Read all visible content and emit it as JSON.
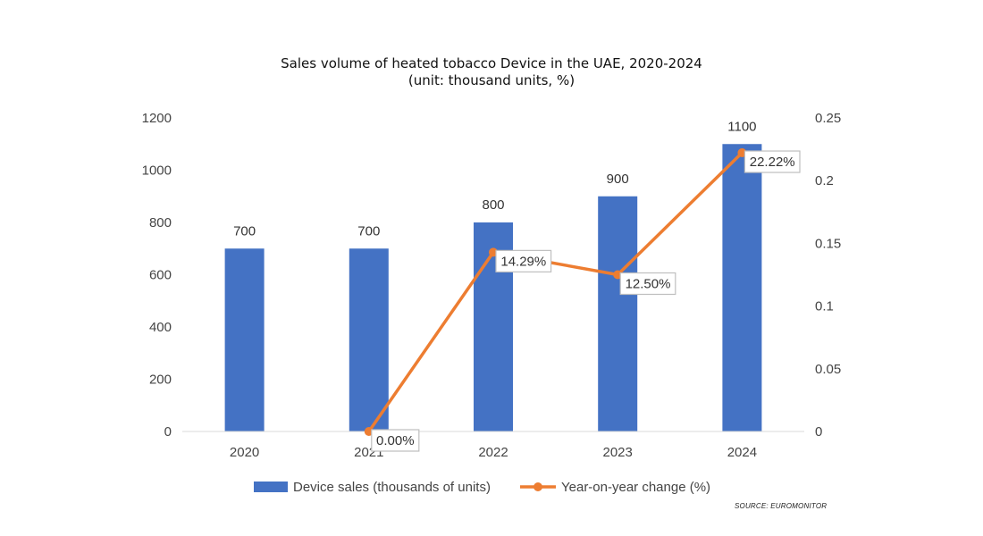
{
  "title": "Sales volume of heated tobacco Device in the UAE, 2020-2024",
  "subtitle": "(unit: thousand units, %)",
  "source": "SOURCE: EUROMONITOR",
  "colors": {
    "bar": "#4472c4",
    "line": "#ed7d31",
    "axis_text": "#444444",
    "label_border": "#bfbfbf"
  },
  "chart_data": {
    "type": "bar",
    "categories": [
      "2020",
      "2021",
      "2022",
      "2023",
      "2024"
    ],
    "series": [
      {
        "name": "Device sales (thousands of units)",
        "type": "bar",
        "axis": "left",
        "values": [
          700,
          700,
          800,
          900,
          1100
        ],
        "labels": [
          "700",
          "700",
          "800",
          "900",
          "1100"
        ]
      },
      {
        "name": "Year-on-year change (%)",
        "type": "line",
        "axis": "right",
        "values": [
          null,
          0.0,
          0.1429,
          0.125,
          0.2222
        ],
        "labels": [
          "",
          "0.00%",
          "14.29%",
          "12.50%",
          "22.22%"
        ]
      }
    ],
    "y_left": {
      "min": 0,
      "max": 1200,
      "ticks": [
        "0",
        "200",
        "400",
        "600",
        "800",
        "1000",
        "1200"
      ]
    },
    "y_right": {
      "min": 0,
      "max": 0.25,
      "ticks": [
        "0",
        "0.05",
        "0.1",
        "0.15",
        "0.2",
        "0.25"
      ]
    },
    "legend_position": "bottom",
    "grid": false
  }
}
